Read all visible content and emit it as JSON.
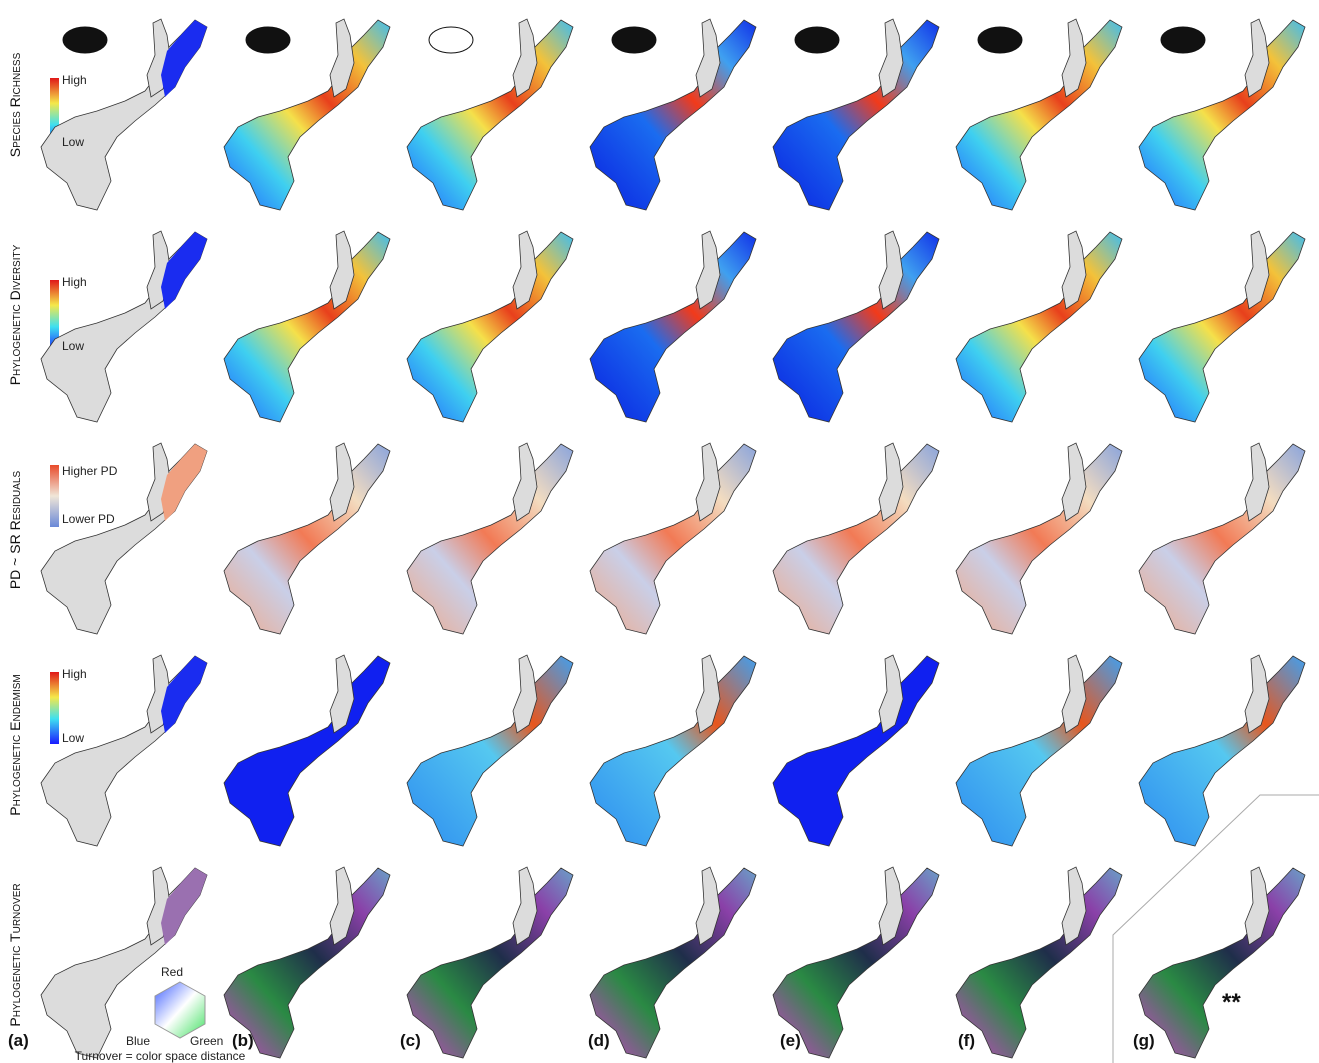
{
  "row_labels": [
    "Species Richness",
    "Phylogenetic Diversity",
    "PD ~ SR Residuals",
    "Phylogenetic Endemism",
    "Phylogenetic Turnover"
  ],
  "legends": [
    {
      "high": "High",
      "low": "Low"
    },
    {
      "high": "High",
      "low": "Low"
    },
    {
      "high": "Higher PD",
      "low": "Lower PD"
    },
    {
      "high": "High",
      "low": "Low"
    }
  ],
  "panels": [
    "(a)",
    "(b)",
    "(c)",
    "(d)",
    "(e)",
    "(f)",
    "(g)"
  ],
  "turnover_legend": {
    "red": "Red",
    "blue": "Blue",
    "green": "Green",
    "caption": "Turnover = color space distance"
  },
  "annotation": "**"
}
